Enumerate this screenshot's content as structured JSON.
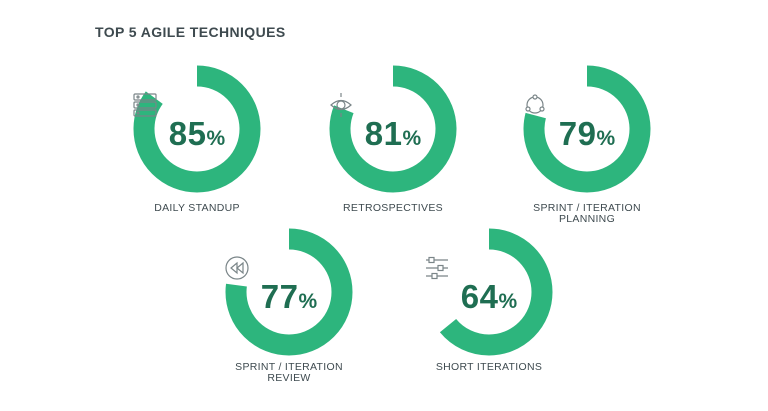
{
  "colors": {
    "ring": "#2db57d",
    "track": "#ffffff",
    "number": "#1f6e52",
    "text": "#3e4a4f"
  },
  "chart_data": {
    "type": "donut",
    "title": "TOP 5 AGILE TECHNIQUES",
    "items": [
      {
        "label": "DAILY STANDUP",
        "value": 85,
        "display": "85",
        "unit": "%",
        "icon": "server-stack-icon"
      },
      {
        "label": "RETROSPECTIVES",
        "value": 81,
        "display": "81",
        "unit": "%",
        "icon": "eye-icon"
      },
      {
        "label": "SPRINT / ITERATION PLANNING",
        "value": 79,
        "display": "79",
        "unit": "%",
        "icon": "cycle-icon"
      },
      {
        "label": "SPRINT / ITERATION REVIEW",
        "value": 77,
        "display": "77",
        "unit": "%",
        "icon": "rewind-icon"
      },
      {
        "label": "SHORT ITERATIONS",
        "value": 64,
        "display": "64",
        "unit": "%",
        "icon": "sliders-icon"
      }
    ]
  }
}
